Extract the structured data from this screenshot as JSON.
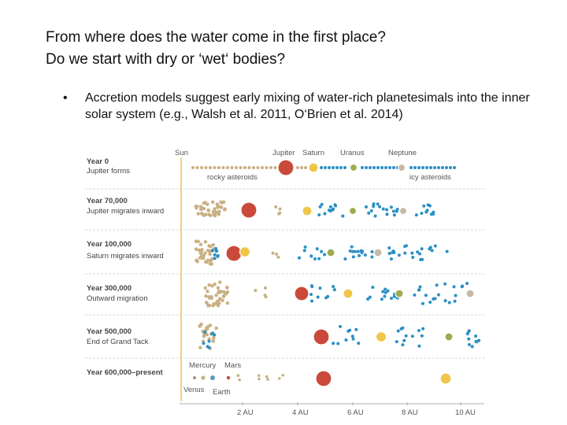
{
  "slide": {
    "title_line1": "From where does the water come in the first place?",
    "title_line2": "Do we start with dry or ‘wet‘ bodies?",
    "bullet_symbol": "•",
    "bullet_text": "Accretion models suggest early mixing of water-rich planetesimals into the inner solar system (e.g., Walsh et al. 2011, O‘Brien et al. 2014)"
  },
  "diagram": {
    "top_labels": {
      "sun": "Sun",
      "jupiter": "Jupiter",
      "saturn": "Saturn",
      "uranus": "Uranus",
      "neptune": "Neptune"
    },
    "belt_labels": {
      "rocky": "rocky asteroids",
      "icy": "icy asteroids"
    },
    "terrestrial_labels": {
      "mercury": "Mercury",
      "mars": "Mars",
      "venus": "Venus",
      "earth": "Earth"
    },
    "stages": [
      {
        "year": "Year 0",
        "event": "Jupiter forms"
      },
      {
        "year": "Year 70,000",
        "event": "Jupiter migrates inward"
      },
      {
        "year": "Year 100,000",
        "event": "Saturn migrates inward"
      },
      {
        "year": "Year 300,000",
        "event": "Outward migration"
      },
      {
        "year": "Year 500,000",
        "event": "End of Grand Tack"
      },
      {
        "year": "Year 600,000–present",
        "event": ""
      }
    ],
    "axis_ticks": [
      "2 AU",
      "4 AU",
      "6 AU",
      "8 AU",
      "10 AU"
    ],
    "colors": {
      "sun_line": "#f2d07a",
      "rocky": "#c9b083",
      "icy": "#2a8fc4",
      "jupiter": "#c94a3a",
      "saturn": "#f0c64a",
      "uranus": "#9cab4e",
      "neptune": "#c8b8a4",
      "separator": "#cccccc",
      "mercury": "#a89070",
      "earth": "#5b9bb5"
    }
  }
}
